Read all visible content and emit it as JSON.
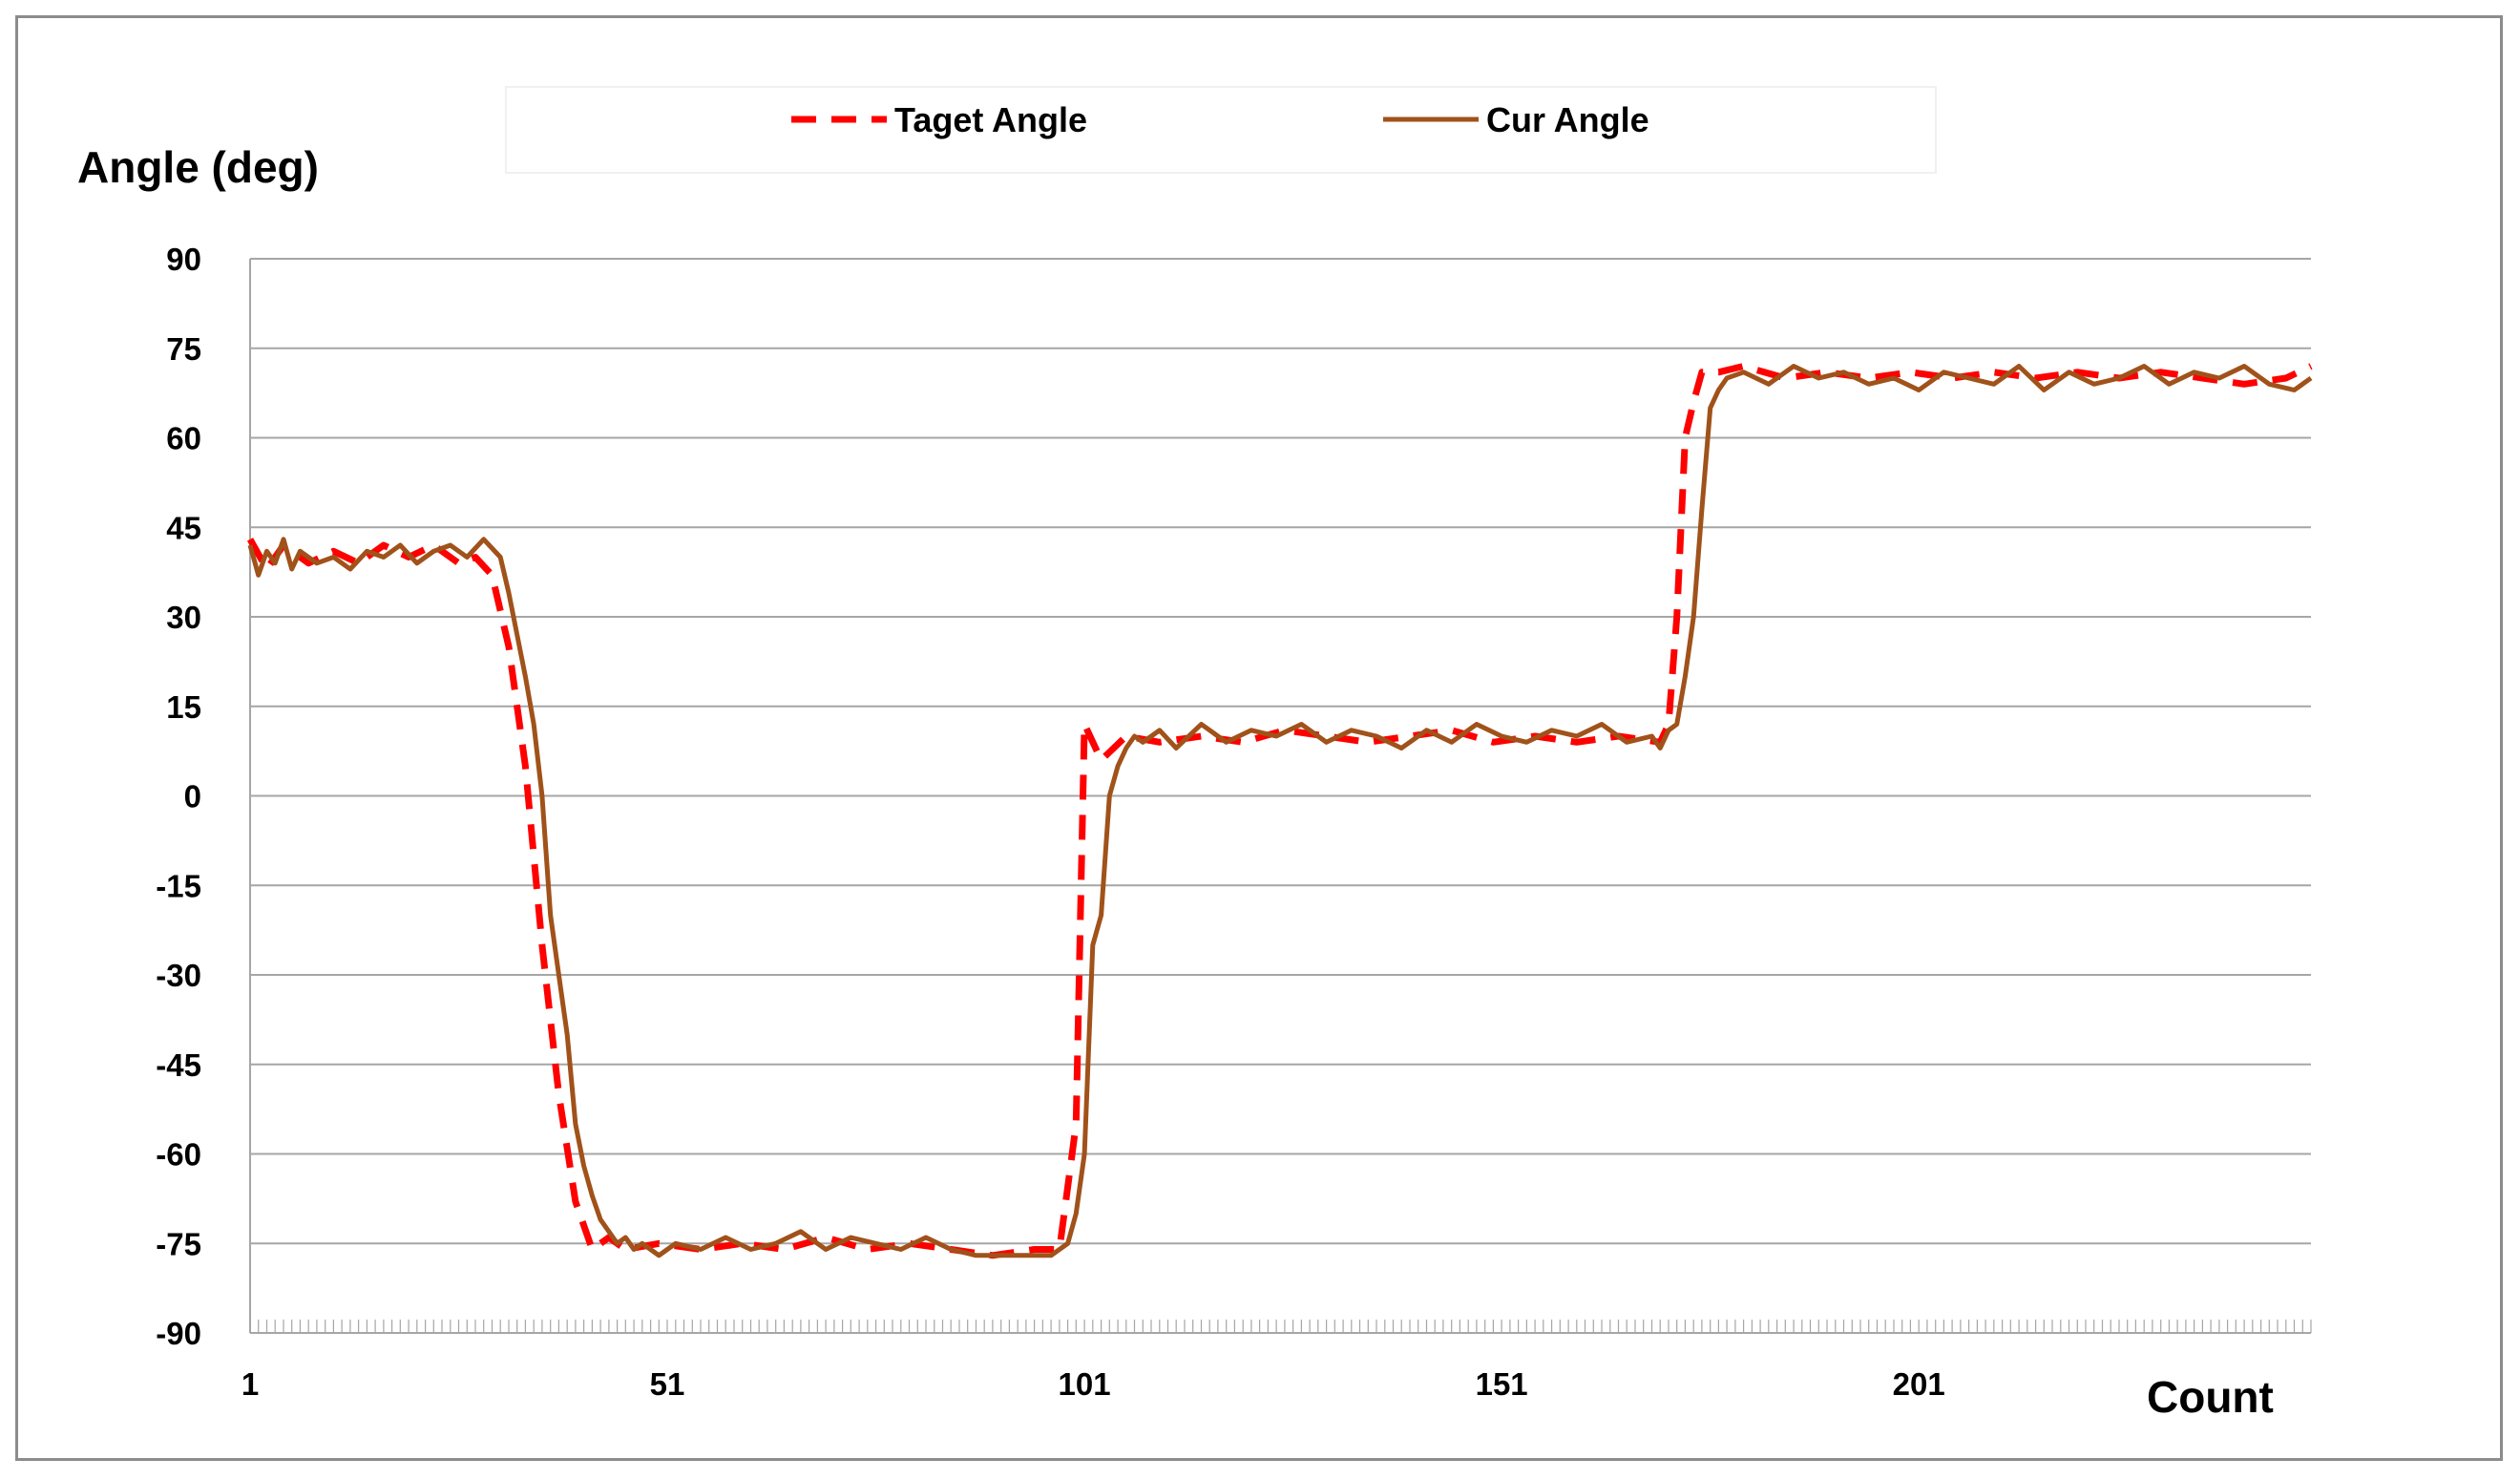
{
  "chart_data": {
    "type": "line",
    "title": "",
    "ylabel": "Angle (deg)",
    "xlabel": "Count",
    "ylim": [
      -90,
      90
    ],
    "xlim": [
      1,
      248
    ],
    "yticks": [
      90,
      75,
      60,
      45,
      30,
      15,
      0,
      -15,
      -30,
      -45,
      -60,
      -75,
      -90
    ],
    "xticks": [
      1,
      51,
      101,
      151,
      201
    ],
    "grid": "horizontal",
    "legend_position": "top",
    "series": [
      {
        "name": "Taget Angle",
        "color": "#ff0000",
        "style": "dashed",
        "x": [
          1,
          3,
          5,
          8,
          11,
          14,
          17,
          20,
          23,
          26,
          28,
          30,
          32,
          34,
          36,
          38,
          40,
          42,
          44,
          46,
          50,
          55,
          60,
          65,
          70,
          75,
          80,
          85,
          90,
          95,
          98,
          100,
          101,
          103,
          106,
          110,
          115,
          120,
          125,
          130,
          135,
          140,
          145,
          150,
          155,
          160,
          165,
          170,
          171,
          172,
          173,
          174,
          175,
          177,
          180,
          185,
          190,
          195,
          200,
          205,
          210,
          215,
          220,
          225,
          230,
          235,
          240,
          245,
          248
        ],
        "y": [
          43,
          38,
          42,
          39,
          41,
          39,
          42,
          40,
          42,
          39,
          40,
          37,
          25,
          5,
          -25,
          -50,
          -68,
          -76,
          -74,
          -76,
          -75,
          -76,
          -75,
          -76,
          -74,
          -76,
          -75,
          -76,
          -77,
          -76,
          -76,
          -55,
          12,
          6,
          10,
          9,
          10,
          9,
          11,
          10,
          9,
          10,
          11,
          9,
          10,
          9,
          10,
          9,
          12,
          30,
          60,
          66,
          71,
          71,
          72,
          70,
          71,
          70,
          71,
          70,
          71,
          70,
          71,
          70,
          71,
          70,
          69,
          70,
          72
        ]
      },
      {
        "name": "Cur Angle",
        "color": "#a0521a",
        "style": "solid",
        "x": [
          1,
          2,
          3,
          4,
          5,
          6,
          7,
          9,
          11,
          13,
          15,
          17,
          19,
          21,
          23,
          25,
          27,
          29,
          31,
          32,
          33,
          34,
          35,
          36,
          37,
          38,
          39,
          40,
          41,
          42,
          43,
          44,
          45,
          46,
          47,
          48,
          50,
          52,
          55,
          58,
          61,
          64,
          67,
          70,
          73,
          76,
          79,
          82,
          85,
          88,
          91,
          94,
          97,
          99,
          100,
          101,
          102,
          103,
          104,
          105,
          106,
          107,
          108,
          110,
          112,
          115,
          118,
          121,
          124,
          127,
          130,
          133,
          136,
          139,
          142,
          145,
          148,
          151,
          154,
          157,
          160,
          163,
          166,
          169,
          170,
          171,
          172,
          173,
          174,
          175,
          176,
          177,
          178,
          180,
          183,
          186,
          189,
          192,
          195,
          198,
          201,
          204,
          207,
          210,
          213,
          216,
          219,
          222,
          225,
          228,
          231,
          234,
          237,
          240,
          243,
          246,
          248
        ],
        "y": [
          42,
          37,
          41,
          39,
          43,
          38,
          41,
          39,
          40,
          38,
          41,
          40,
          42,
          39,
          41,
          42,
          40,
          43,
          40,
          34,
          27,
          20,
          12,
          0,
          -20,
          -30,
          -40,
          -55,
          -62,
          -67,
          -71,
          -73,
          -75,
          -74,
          -76,
          -75,
          -77,
          -75,
          -76,
          -74,
          -76,
          -75,
          -73,
          -76,
          -74,
          -75,
          -76,
          -74,
          -76,
          -77,
          -77,
          -77,
          -77,
          -75,
          -70,
          -60,
          -25,
          -20,
          0,
          5,
          8,
          10,
          9,
          11,
          8,
          12,
          9,
          11,
          10,
          12,
          9,
          11,
          10,
          8,
          11,
          9,
          12,
          10,
          9,
          11,
          10,
          12,
          9,
          10,
          8,
          11,
          12,
          20,
          30,
          48,
          65,
          68,
          70,
          71,
          69,
          72,
          70,
          71,
          69,
          70,
          68,
          71,
          70,
          69,
          72,
          68,
          71,
          69,
          70,
          72,
          69,
          71,
          70,
          72,
          69,
          68,
          70
        ]
      }
    ]
  }
}
